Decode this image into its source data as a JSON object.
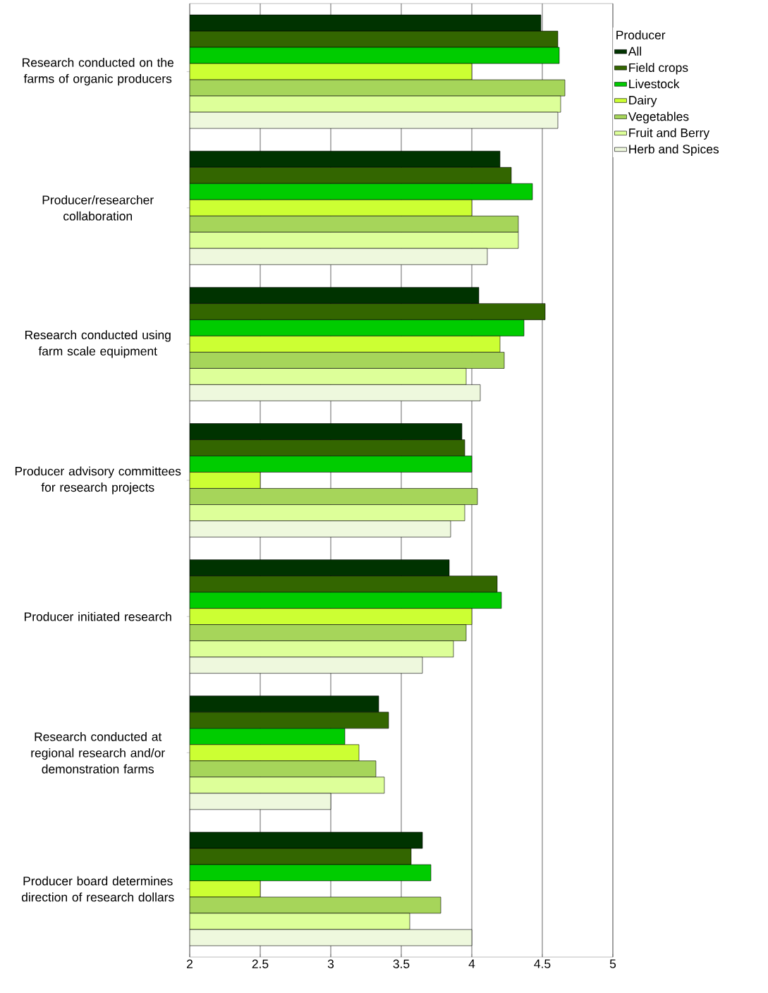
{
  "chart_data": {
    "type": "bar",
    "orientation": "horizontal",
    "categories": [
      "Research conducted on the farms of organic producers",
      "Producer/researcher collaboration",
      "Research conducted using farm scale equipment",
      "Producer advisory committees for research projects",
      "Producer initiated research",
      "Research conducted at regional research and/or demonstration farms",
      "Producer board determines direction of research dollars"
    ],
    "series": [
      {
        "name": "All",
        "color": "#003300",
        "values": [
          4.49,
          4.2,
          4.05,
          3.93,
          3.84,
          3.34,
          3.65
        ]
      },
      {
        "name": "Field crops",
        "color": "#336600",
        "values": [
          4.61,
          4.28,
          4.52,
          3.95,
          4.18,
          3.41,
          3.57
        ]
      },
      {
        "name": "Livestock",
        "color": "#00cc00",
        "values": [
          4.62,
          4.43,
          4.37,
          4.0,
          4.21,
          3.1,
          3.71
        ]
      },
      {
        "name": "Dairy",
        "color": "#ccff33",
        "values": [
          4.0,
          4.0,
          4.2,
          2.5,
          4.0,
          3.2,
          2.5
        ]
      },
      {
        "name": "Vegetables",
        "color": "#a6d55a",
        "values": [
          4.66,
          4.33,
          4.23,
          4.04,
          3.96,
          3.32,
          3.78
        ]
      },
      {
        "name": "Fruit and Berry",
        "color": "#ddff99",
        "values": [
          4.63,
          4.33,
          3.96,
          3.95,
          3.87,
          3.38,
          3.56
        ]
      },
      {
        "name": "Herb and Spices",
        "color": "#eef8dd",
        "values": [
          4.61,
          4.11,
          4.06,
          3.85,
          3.65,
          3.0,
          4.0
        ]
      }
    ],
    "legend_title": "Producer",
    "xlim": [
      2,
      5
    ],
    "xticks": [
      2,
      2.5,
      3,
      3.5,
      4,
      4.5,
      5
    ],
    "grid": "x",
    "legend": "right"
  }
}
